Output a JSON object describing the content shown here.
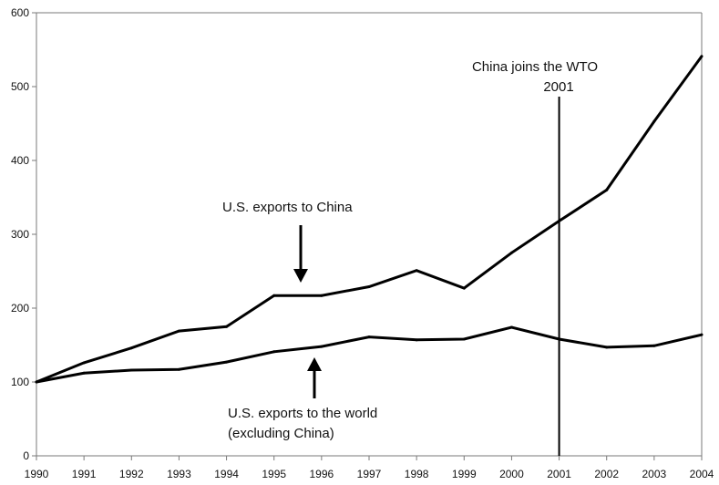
{
  "chart_data": {
    "type": "line",
    "x": [
      "1990",
      "1991",
      "1992",
      "1993",
      "1994",
      "1995",
      "1996",
      "1997",
      "1998",
      "1999",
      "2000",
      "2001",
      "2002",
      "2003",
      "2004"
    ],
    "series": [
      {
        "name": "U.S. exports to China",
        "values": [
          100,
          126,
          146,
          169,
          175,
          217,
          217,
          229,
          251,
          227,
          275,
          318,
          360,
          453,
          541
        ]
      },
      {
        "name": "U.S. exports to the world (excluding China)",
        "values": [
          100,
          112,
          116,
          117,
          127,
          141,
          148,
          161,
          157,
          158,
          174,
          158,
          147,
          149,
          164
        ]
      }
    ],
    "ylim": [
      0,
      600
    ],
    "yticks": [
      "0",
      "100",
      "200",
      "300",
      "400",
      "500",
      "600"
    ],
    "grid": false,
    "colors": {
      "line": "#000000",
      "axis": "#7a7a7a"
    },
    "annotations": {
      "china_label": "U.S. exports to China",
      "world_label_line1": "U.S. exports to the world",
      "world_label_line2": "(excluding China)",
      "wto_line1": "China joins the WTO",
      "wto_line2": "2001"
    },
    "wto_year": "2001"
  }
}
